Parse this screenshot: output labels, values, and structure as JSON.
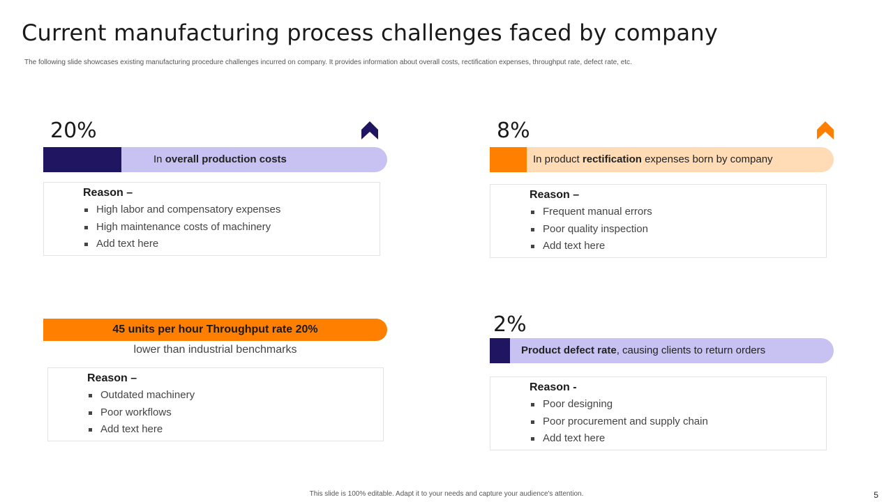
{
  "header": {
    "title": "Current manufacturing process challenges faced by company",
    "subtitle": "The following slide showcases existing manufacturing procedure challenges incurred on company. It provides information about overall costs, rectification expenses, throughput rate, defect rate, etc."
  },
  "colors": {
    "navy": "#1f1560",
    "lavender": "#c8c2f2",
    "orange": "#ff8000",
    "peach": "#ffdcb5"
  },
  "panels": {
    "costs": {
      "percent": "20%",
      "arrow_icon": "chevron-up-icon",
      "bar_pre": "In ",
      "bar_bold": "overall production costs",
      "reason_title": "Reason –",
      "reasons": [
        "High labor and compensatory expenses",
        "High maintenance costs of machinery",
        "Add text here"
      ]
    },
    "rectification": {
      "percent": "8%",
      "arrow_icon": "chevron-up-icon",
      "bar_pre": "In product ",
      "bar_bold": "rectification",
      "bar_post": " expenses born by company",
      "reason_title": "Reason –",
      "reasons": [
        "Frequent manual errors",
        "Poor quality inspection",
        "Add text here"
      ]
    },
    "throughput": {
      "bar_text": "45 units per hour Throughput rate 20%",
      "subtext": "lower than industrial benchmarks",
      "reason_title": "Reason –",
      "reasons": [
        "Outdated machinery",
        "Poor workflows",
        "Add text here"
      ]
    },
    "defect": {
      "percent": "2%",
      "bar_bold": "Product defect rate",
      "bar_post": ", causing clients to return orders",
      "reason_title": "Reason -",
      "reasons": [
        "Poor designing",
        "Poor procurement and supply chain",
        "Add text here"
      ]
    }
  },
  "footer": {
    "note": "This slide is 100% editable. Adapt it to your needs and capture your audience's attention.",
    "page_number": "5"
  }
}
